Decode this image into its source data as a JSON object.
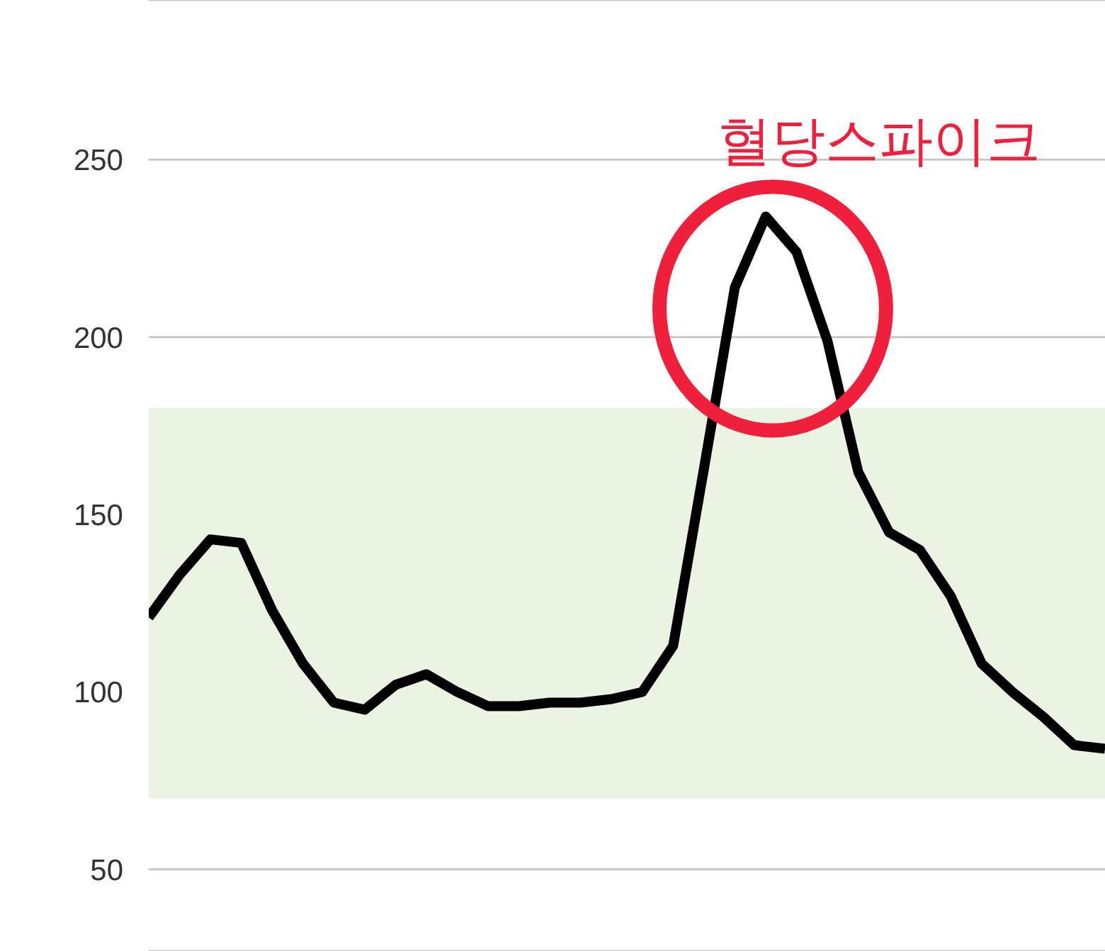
{
  "chart_data": {
    "type": "line",
    "categories": [
      null,
      null,
      null,
      null,
      null,
      null,
      null,
      null,
      null,
      null,
      null,
      null,
      null,
      null,
      null,
      null,
      null,
      null,
      null,
      null,
      null,
      null,
      null,
      null,
      null,
      null,
      null,
      null,
      null,
      null,
      null,
      null
    ],
    "series": [
      {
        "color": "#000000",
        "values": [
          121,
          133,
          143,
          142,
          123,
          108,
          97,
          95,
          102,
          105,
          100,
          96,
          96,
          97,
          97,
          98,
          100,
          113,
          163,
          214,
          234,
          224,
          199,
          162,
          145,
          140,
          127,
          108,
          100,
          93,
          85,
          84
        ]
      }
    ],
    "ylim": [
      27,
      295
    ],
    "yticks": [
      50,
      100,
      150,
      200,
      250
    ],
    "grid": "y",
    "marker": "none",
    "line_style": "solid",
    "tick_labels": "y",
    "bands": [
      {
        "axis": "y",
        "from": 70,
        "to": 180,
        "color": "#ebf3e3"
      }
    ],
    "annotations": [
      "혈당스파이크"
    ]
  }
}
